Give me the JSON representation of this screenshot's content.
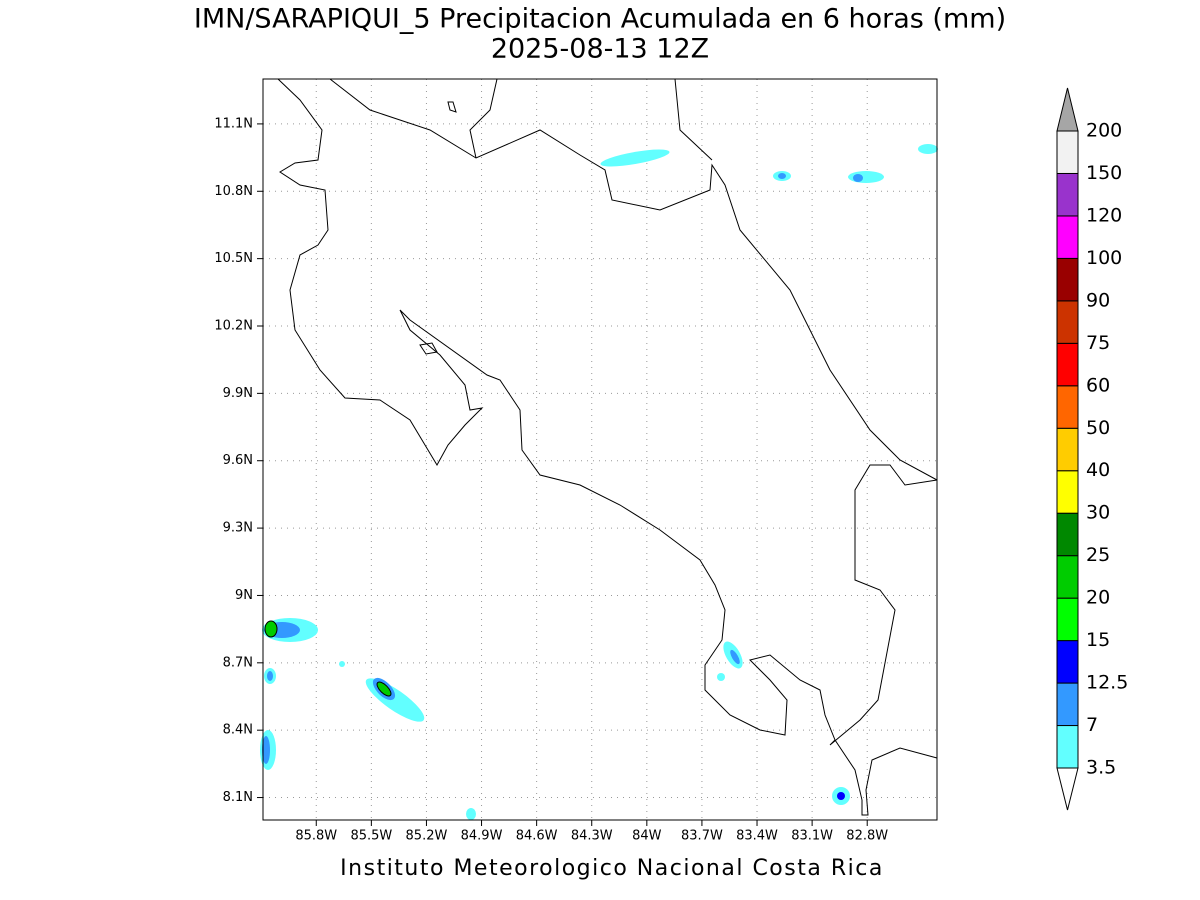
{
  "title": "IMN/SARAPIQUI_5 Precipitacion Acumulada en 6 horas (mm)",
  "subtitle": "2025-08-13 12Z",
  "footer": "Instituto Meteorologico Nacional Costa Rica",
  "map": {
    "xlim": [
      -86.09,
      -82.42
    ],
    "ylim": [
      8.0,
      11.3
    ],
    "xticks": [
      {
        "value": -85.8,
        "label": "85.8W"
      },
      {
        "value": -85.5,
        "label": "85.5W"
      },
      {
        "value": -85.2,
        "label": "85.2W"
      },
      {
        "value": -84.9,
        "label": "84.9W"
      },
      {
        "value": -84.6,
        "label": "84.6W"
      },
      {
        "value": -84.3,
        "label": "84.3W"
      },
      {
        "value": -84.0,
        "label": "84W"
      },
      {
        "value": -83.7,
        "label": "83.7W"
      },
      {
        "value": -83.4,
        "label": "83.4W"
      },
      {
        "value": -83.1,
        "label": "83.1W"
      },
      {
        "value": -82.8,
        "label": "82.8W"
      }
    ],
    "yticks": [
      {
        "value": 8.1,
        "label": "8.1N"
      },
      {
        "value": 8.4,
        "label": "8.4N"
      },
      {
        "value": 8.7,
        "label": "8.7N"
      },
      {
        "value": 9.0,
        "label": "9N"
      },
      {
        "value": 9.3,
        "label": "9.3N"
      },
      {
        "value": 9.6,
        "label": "9.6N"
      },
      {
        "value": 9.9,
        "label": "9.9N"
      },
      {
        "value": 10.2,
        "label": "10.2N"
      },
      {
        "value": 10.5,
        "label": "10.5N"
      },
      {
        "value": 10.8,
        "label": "10.8N"
      },
      {
        "value": 11.1,
        "label": "11.1N"
      }
    ],
    "grid": true
  },
  "colorbar": {
    "levels": [
      3.5,
      7,
      12.5,
      15,
      20,
      25,
      30,
      40,
      50,
      60,
      75,
      90,
      100,
      120,
      150,
      200
    ],
    "colors": [
      "#62ffff",
      "#3399ff",
      "#0000ff",
      "#00ff00",
      "#00cc00",
      "#008800",
      "#ffff00",
      "#ffcc00",
      "#ff6600",
      "#ff0000",
      "#cc3300",
      "#990000",
      "#ff00ff",
      "#9933cc",
      "#f2f2f2"
    ],
    "under_color": "#ffffff",
    "over_color": "#a6a6a6"
  }
}
